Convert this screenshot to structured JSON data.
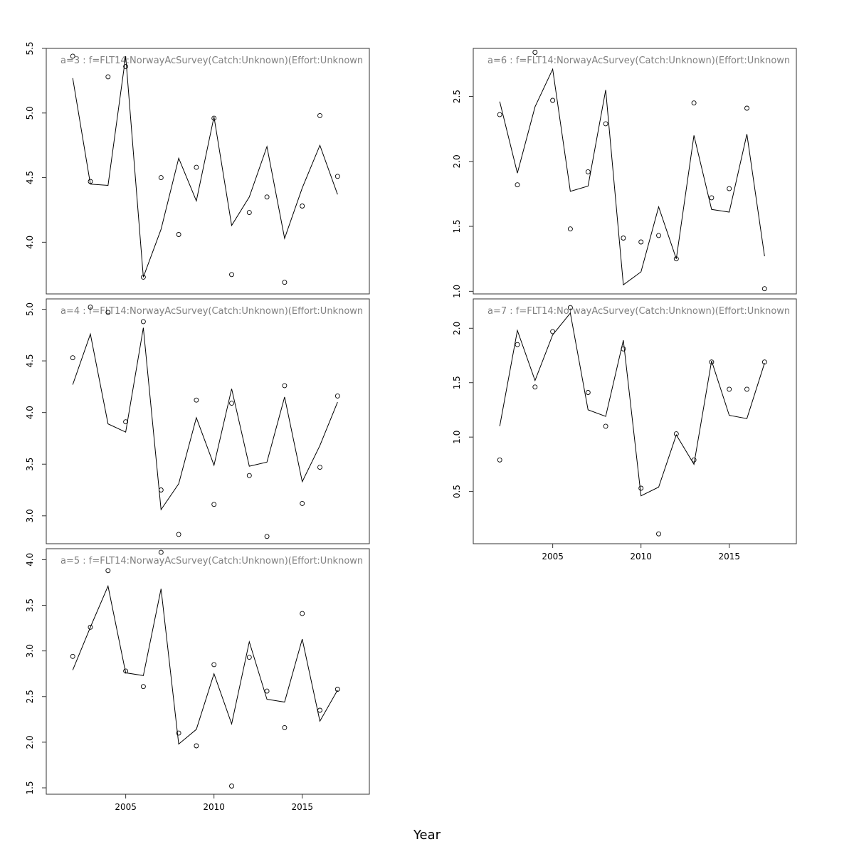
{
  "xlabel": "Year",
  "chart_data": [
    {
      "type": "line",
      "title": "a=3  :  f=FLT14:NorwayAcSurvey(Catch:Unknown)(Effort:Unknown",
      "x": [
        2002,
        2003,
        2004,
        2005,
        2006,
        2007,
        2008,
        2009,
        2010,
        2011,
        2012,
        2013,
        2014,
        2015,
        2016,
        2017
      ],
      "xlim": [
        2000.5,
        2018.8
      ],
      "xticks": [],
      "ylim": [
        3.6,
        5.5
      ],
      "yticks": [
        "4.0",
        "4.5",
        "5.0",
        "5.5"
      ],
      "series": [
        {
          "kind": "line",
          "values": [
            5.27,
            4.45,
            4.44,
            5.44,
            3.73,
            4.1,
            4.65,
            4.32,
            4.97,
            4.13,
            4.35,
            4.74,
            4.03,
            4.42,
            4.75,
            4.37
          ]
        },
        {
          "kind": "points",
          "values": [
            5.44,
            4.47,
            5.28,
            5.36,
            3.73,
            4.5,
            4.06,
            4.58,
            4.96,
            3.75,
            4.23,
            4.35,
            3.69,
            4.28,
            4.98,
            4.51
          ]
        }
      ]
    },
    {
      "type": "line",
      "title": "a=4  :  f=FLT14:NorwayAcSurvey(Catch:Unknown)(Effort:Unknown",
      "x": [
        2002,
        2003,
        2004,
        2005,
        2006,
        2007,
        2008,
        2009,
        2010,
        2011,
        2012,
        2013,
        2014,
        2015,
        2016,
        2017
      ],
      "xlim": [
        2000.5,
        2018.8
      ],
      "xticks": [],
      "ylim": [
        2.73,
        5.1
      ],
      "yticks": [
        "3.0",
        "3.5",
        "4.0",
        "4.5",
        "5.0"
      ],
      "series": [
        {
          "kind": "line",
          "values": [
            4.27,
            4.76,
            3.89,
            3.81,
            4.82,
            3.06,
            3.31,
            3.95,
            3.49,
            4.23,
            3.48,
            3.52,
            4.15,
            3.33,
            3.68,
            4.1
          ]
        },
        {
          "kind": "points",
          "values": [
            4.53,
            5.02,
            4.97,
            3.91,
            4.88,
            3.25,
            2.82,
            4.12,
            3.11,
            4.09,
            3.39,
            2.8,
            4.26,
            3.12,
            3.47,
            4.16
          ]
        }
      ]
    },
    {
      "type": "line",
      "title": "a=5  :  f=FLT14:NorwayAcSurvey(Catch:Unknown)(Effort:Unknown",
      "x": [
        2002,
        2003,
        2004,
        2005,
        2006,
        2007,
        2008,
        2009,
        2010,
        2011,
        2012,
        2013,
        2014,
        2015,
        2016,
        2017
      ],
      "xlim": [
        2000.5,
        2018.8
      ],
      "xticks": [
        "2005",
        "2010",
        "2015"
      ],
      "ylim": [
        1.43,
        4.12
      ],
      "yticks": [
        "1.5",
        "2.0",
        "2.5",
        "3.0",
        "3.5",
        "4.0"
      ],
      "series": [
        {
          "kind": "line",
          "values": [
            2.79,
            3.26,
            3.71,
            2.76,
            2.73,
            3.68,
            1.98,
            2.14,
            2.75,
            2.2,
            3.1,
            2.47,
            2.44,
            3.13,
            2.23,
            2.57
          ]
        },
        {
          "kind": "points",
          "values": [
            2.94,
            3.26,
            3.88,
            2.78,
            2.61,
            4.08,
            2.1,
            1.96,
            2.85,
            1.52,
            2.93,
            2.56,
            2.16,
            3.41,
            2.35,
            2.58
          ]
        }
      ]
    },
    {
      "type": "line",
      "title": "a=6  :  f=FLT14:NorwayAcSurvey(Catch:Unknown)(Effort:Unknown",
      "x": [
        2002,
        2003,
        2004,
        2005,
        2006,
        2007,
        2008,
        2009,
        2010,
        2011,
        2012,
        2013,
        2014,
        2015,
        2016,
        2017
      ],
      "xlim": [
        2000.5,
        2018.8
      ],
      "xticks": [],
      "ylim": [
        0.98,
        2.87
      ],
      "yticks": [
        "1.0",
        "1.5",
        "2.0",
        "2.5"
      ],
      "series": [
        {
          "kind": "line",
          "values": [
            2.46,
            1.91,
            2.42,
            2.71,
            1.77,
            1.81,
            2.55,
            1.05,
            1.15,
            1.65,
            1.25,
            2.2,
            1.63,
            1.61,
            2.21,
            1.27
          ]
        },
        {
          "kind": "points",
          "values": [
            2.36,
            1.82,
            2.84,
            2.47,
            1.48,
            1.92,
            2.29,
            1.41,
            1.38,
            1.43,
            1.25,
            2.45,
            1.72,
            1.79,
            2.41,
            1.02
          ]
        }
      ]
    },
    {
      "type": "line",
      "title": "a=7  :  f=FLT14:NorwayAcSurvey(Catch:Unknown)(Effort:Unknown",
      "x": [
        2002,
        2003,
        2004,
        2005,
        2006,
        2007,
        2008,
        2009,
        2010,
        2011,
        2012,
        2013,
        2014,
        2015,
        2016,
        2017
      ],
      "xlim": [
        2000.5,
        2018.8
      ],
      "xticks": [
        "2005",
        "2010",
        "2015"
      ],
      "ylim": [
        0.02,
        2.27
      ],
      "yticks": [
        "0.5",
        "1.0",
        "1.5",
        "2.0"
      ],
      "series": [
        {
          "kind": "line",
          "values": [
            1.1,
            1.98,
            1.52,
            1.94,
            2.14,
            1.25,
            1.19,
            1.89,
            0.46,
            0.54,
            1.02,
            0.75,
            1.7,
            1.2,
            1.17,
            1.68
          ]
        },
        {
          "kind": "points",
          "values": [
            0.79,
            1.85,
            1.46,
            1.97,
            2.19,
            1.41,
            1.1,
            1.81,
            0.53,
            0.11,
            1.03,
            0.79,
            1.69,
            1.44,
            1.44,
            1.69
          ]
        }
      ]
    }
  ]
}
